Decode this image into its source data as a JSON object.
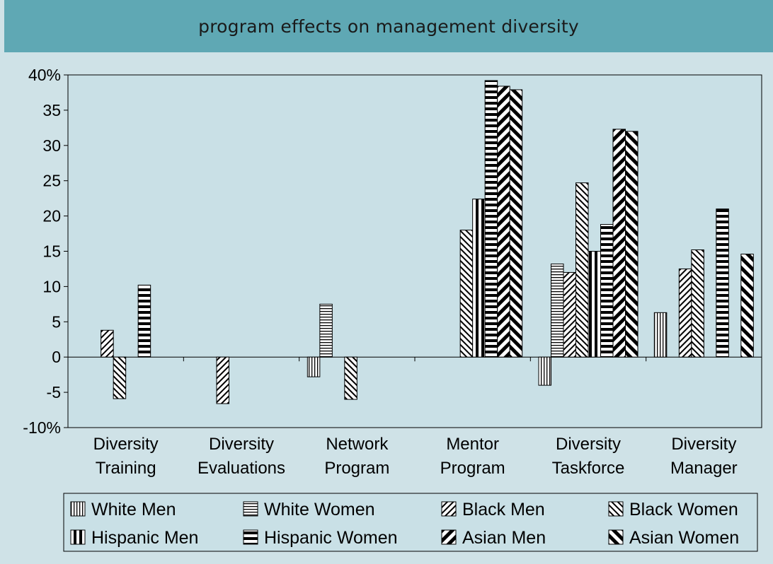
{
  "header": {
    "title": "program effects on management diversity"
  },
  "chart_data": {
    "type": "bar",
    "title": "program effects on management diversity",
    "xlabel": "",
    "ylabel": "",
    "ylim": [
      -10,
      40
    ],
    "yticks": [
      {
        "value": 40,
        "label": "40%"
      },
      {
        "value": 35,
        "label": "35"
      },
      {
        "value": 30,
        "label": "30"
      },
      {
        "value": 25,
        "label": "25"
      },
      {
        "value": 20,
        "label": "20"
      },
      {
        "value": 15,
        "label": "15"
      },
      {
        "value": 10,
        "label": "10"
      },
      {
        "value": 5,
        "label": "5"
      },
      {
        "value": 0,
        "label": "0"
      },
      {
        "value": -5,
        "label": "-5"
      },
      {
        "value": -10,
        "label": "-10%"
      }
    ],
    "categories": [
      [
        "Diversity",
        "Training"
      ],
      [
        "Diversity",
        "Evaluations"
      ],
      [
        "Network",
        "Program"
      ],
      [
        "Mentor",
        "Program"
      ],
      [
        "Diversity",
        "Taskforce"
      ],
      [
        "Diversity",
        "Manager"
      ]
    ],
    "legend_position": "bottom",
    "grid": false,
    "series": [
      {
        "name": "White Men",
        "pattern": "vlines",
        "values": [
          null,
          null,
          -2.8,
          null,
          -4.0,
          6.3
        ]
      },
      {
        "name": "White Women",
        "pattern": "hlines",
        "values": [
          null,
          null,
          7.5,
          null,
          13.2,
          null
        ]
      },
      {
        "name": "Black Men",
        "pattern": "ddiag",
        "values": [
          3.8,
          -6.6,
          null,
          null,
          12.0,
          12.5
        ]
      },
      {
        "name": "Black Women",
        "pattern": "udiag",
        "values": [
          -5.9,
          null,
          -6.0,
          18.0,
          24.7,
          15.2
        ]
      },
      {
        "name": "Hispanic Men",
        "pattern": "vbold",
        "values": [
          null,
          null,
          null,
          22.4,
          15.0,
          null
        ]
      },
      {
        "name": "Hispanic Women",
        "pattern": "hbold",
        "values": [
          10.2,
          null,
          null,
          39.2,
          18.8,
          21.0
        ]
      },
      {
        "name": "Asian Men",
        "pattern": "ddiagbold",
        "values": [
          null,
          null,
          null,
          38.4,
          32.3,
          null
        ]
      },
      {
        "name": "Asian Women",
        "pattern": "udiagbold",
        "values": [
          null,
          null,
          null,
          37.9,
          32.0,
          14.6
        ]
      }
    ]
  }
}
